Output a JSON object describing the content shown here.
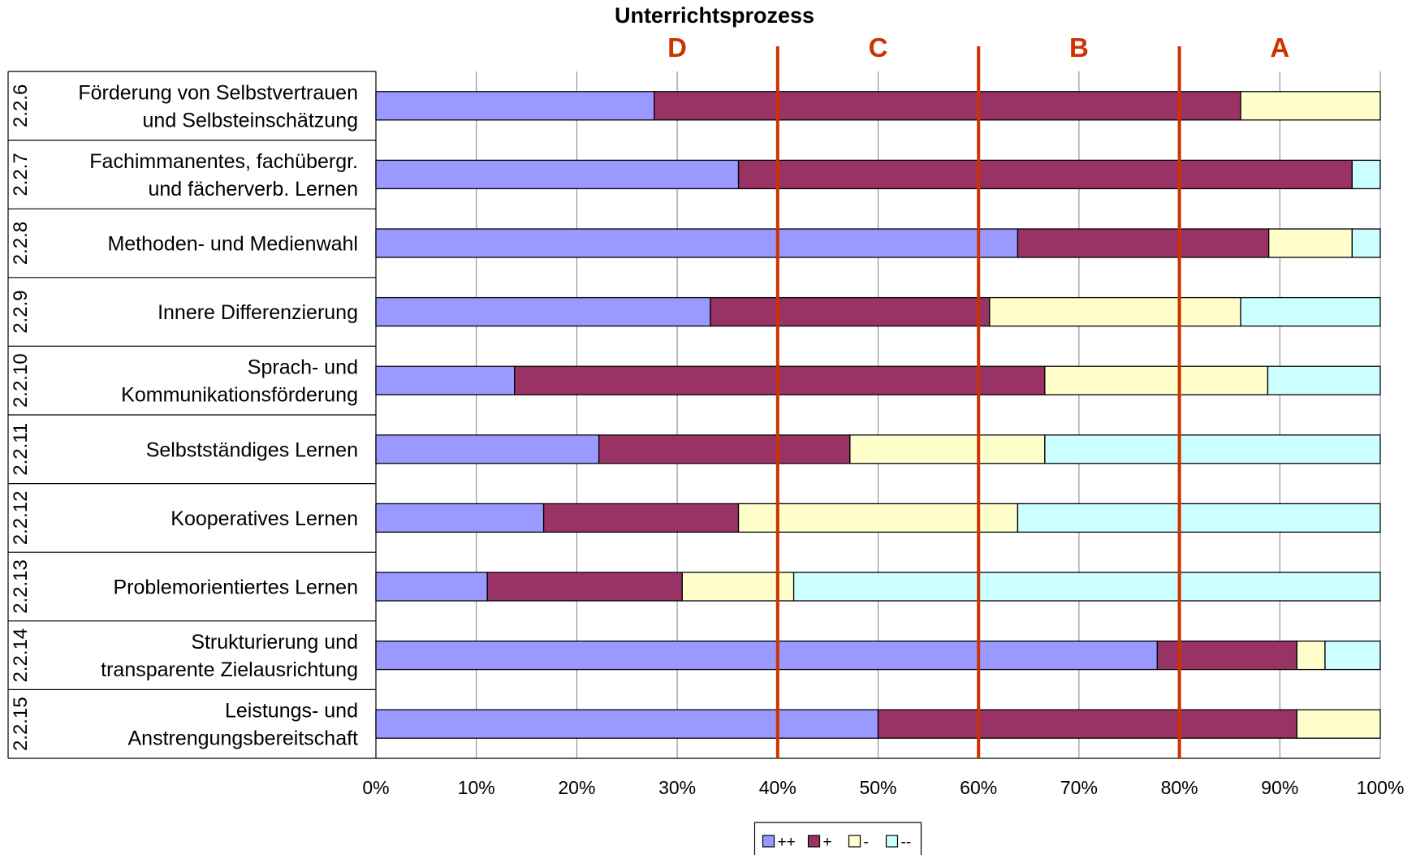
{
  "chart_data": {
    "type": "bar",
    "orientation": "horizontal",
    "stacked": "percent",
    "title": "Unterrichtsprozess",
    "xlabel": "",
    "ylabel": "",
    "xlim": [
      0,
      100
    ],
    "x_ticks": [
      "0%",
      "10%",
      "20%",
      "30%",
      "40%",
      "50%",
      "60%",
      "70%",
      "80%",
      "90%",
      "100%"
    ],
    "grid": "vertical",
    "legend_position": "bottom",
    "categories": [
      {
        "code": "2.2.6",
        "label": [
          "Förderung von Selbstvertrauen",
          "und Selbsteinschätzung"
        ]
      },
      {
        "code": "2.2.7",
        "label": [
          "Fachimmanentes, fachübergr.",
          "und fächerverb. Lernen"
        ]
      },
      {
        "code": "2.2.8",
        "label": [
          "Methoden- und Medienwahl"
        ]
      },
      {
        "code": "2.2.9",
        "label": [
          "Innere Differenzierung"
        ]
      },
      {
        "code": "2.2.10",
        "label": [
          "Sprach- und",
          "Kommunikationsförderung"
        ]
      },
      {
        "code": "2.2.11",
        "label": [
          "Selbstständiges Lernen"
        ]
      },
      {
        "code": "2.2.12",
        "label": [
          "Kooperatives Lernen"
        ]
      },
      {
        "code": "2.2.13",
        "label": [
          "Problemorientiertes Lernen"
        ]
      },
      {
        "code": "2.2.14",
        "label": [
          "Strukturierung und",
          "transparente Zielausrichtung"
        ]
      },
      {
        "code": "2.2.15",
        "label": [
          "Leistungs- und",
          "Anstrengungsbereitschaft"
        ]
      }
    ],
    "series": [
      {
        "name": "++",
        "color": "#9999ff",
        "values": [
          27.7,
          36.1,
          63.9,
          33.3,
          13.8,
          22.2,
          16.7,
          11.1,
          77.8,
          50.0
        ]
      },
      {
        "name": "+",
        "color": "#993366",
        "values": [
          58.4,
          61.1,
          25.0,
          27.8,
          52.8,
          25.0,
          19.4,
          19.4,
          13.9,
          41.7
        ]
      },
      {
        "name": "-",
        "color": "#ffffcc",
        "values": [
          13.9,
          0.0,
          8.3,
          25.0,
          22.2,
          19.4,
          27.8,
          11.1,
          2.8,
          8.3
        ]
      },
      {
        "name": "--",
        "color": "#ccffff",
        "values": [
          0.0,
          2.8,
          2.8,
          13.9,
          11.2,
          33.4,
          36.1,
          58.4,
          5.5,
          0.0
        ]
      }
    ],
    "reference_lines": {
      "color": "#cc3300",
      "values": [
        40,
        60,
        80
      ],
      "zones": [
        {
          "label": "D",
          "center": 30
        },
        {
          "label": "C",
          "center": 50
        },
        {
          "label": "B",
          "center": 70
        },
        {
          "label": "A",
          "center": 90
        }
      ]
    }
  }
}
